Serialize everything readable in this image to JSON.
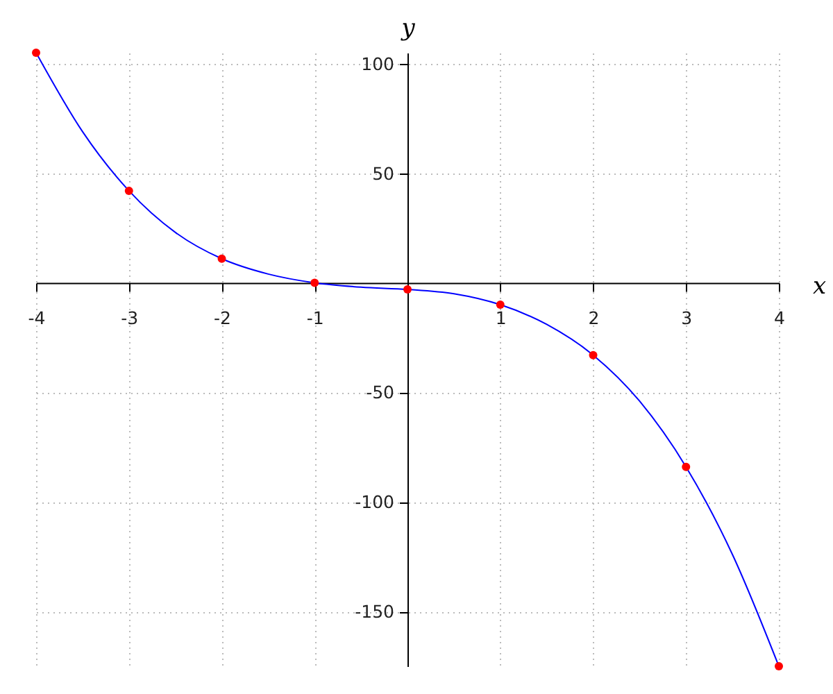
{
  "chart_data": {
    "type": "line",
    "xlabel": "x",
    "ylabel": "y",
    "xlim": [
      -4,
      4
    ],
    "ylim": [
      -175,
      105
    ],
    "xticks": [
      -4,
      -3,
      -2,
      -1,
      1,
      2,
      3,
      4
    ],
    "yticks": [
      -150,
      -100,
      -50,
      50,
      100
    ],
    "grid": true,
    "series": [
      {
        "color": "#0000ff",
        "x": [
          -4,
          -3.5,
          -3,
          -2.5,
          -2,
          -1.5,
          -1,
          -0.5,
          0,
          0.5,
          1,
          1.5,
          2,
          2.5,
          3,
          3.5,
          4
        ],
        "values": [
          105,
          69,
          42,
          23,
          11,
          4,
          0,
          -2,
          -3,
          -5,
          -10,
          -19,
          -33,
          -54,
          -84,
          -124,
          -175
        ]
      },
      {
        "type": "scatter",
        "color": "#ff0000",
        "marker": "circle",
        "x": [
          -4,
          -3,
          -2,
          -1,
          0,
          1,
          2,
          3,
          4
        ],
        "values": [
          105,
          42,
          11,
          0,
          -3,
          -10,
          -33,
          -84,
          -175
        ]
      }
    ]
  }
}
